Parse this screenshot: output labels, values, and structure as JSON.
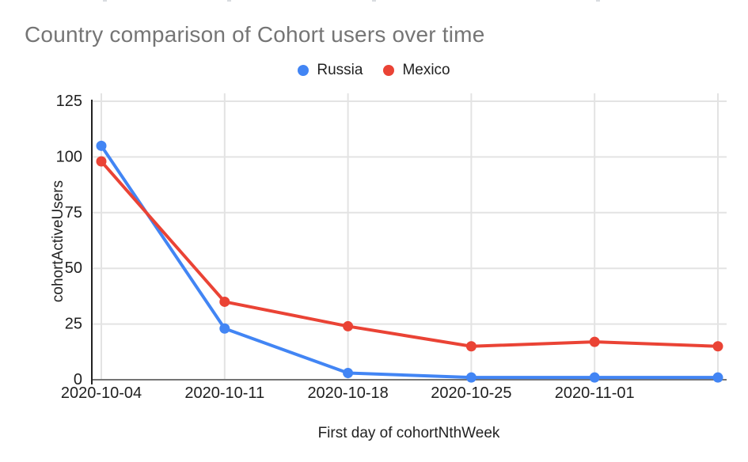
{
  "header": {
    "title": "Country comparison of Cohort users over time",
    "title_color": "#757575"
  },
  "legend": {
    "items": [
      {
        "label": "Russia",
        "color": "#4285F4"
      },
      {
        "label": "Mexico",
        "color": "#EA4335"
      }
    ]
  },
  "chart_data": {
    "type": "line",
    "title": "Country comparison of Cohort users over time",
    "x": [
      "2020-10-04",
      "2020-10-11",
      "2020-10-18",
      "2020-10-25",
      "2020-11-01",
      ""
    ],
    "series": [
      {
        "name": "Russia",
        "color": "#4285F4",
        "values": [
          105,
          23,
          3,
          1,
          1,
          1
        ]
      },
      {
        "name": "Mexico",
        "color": "#EA4335",
        "values": [
          98,
          35,
          24,
          15,
          17,
          15
        ]
      }
    ],
    "xlabel": "First day of cohortNthWeek",
    "ylabel": "cohortActiveUsers",
    "ylim": [
      0,
      125
    ],
    "yticks": [
      0,
      25,
      50,
      75,
      100,
      125
    ],
    "grid": true,
    "legend_position": "top",
    "marker": "circle"
  },
  "colors": {
    "gridline": "#e3e3e3",
    "y_axis_line": "#222222",
    "baseline": "#757575",
    "tick_label": "#1f1f1f"
  }
}
